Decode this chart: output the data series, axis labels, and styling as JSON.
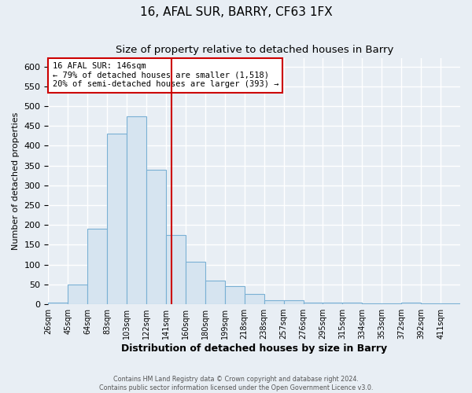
{
  "title": "16, AFAL SUR, BARRY, CF63 1FX",
  "subtitle": "Size of property relative to detached houses in Barry",
  "xlabel": "Distribution of detached houses by size in Barry",
  "ylabel": "Number of detached properties",
  "footer_line1": "Contains HM Land Registry data © Crown copyright and database right 2024.",
  "footer_line2": "Contains public sector information licensed under the Open Government Licence v3.0.",
  "bin_labels": [
    "26sqm",
    "45sqm",
    "64sqm",
    "83sqm",
    "103sqm",
    "122sqm",
    "141sqm",
    "160sqm",
    "180sqm",
    "199sqm",
    "218sqm",
    "238sqm",
    "257sqm",
    "276sqm",
    "295sqm",
    "315sqm",
    "334sqm",
    "353sqm",
    "372sqm",
    "392sqm",
    "411sqm"
  ],
  "bar_heights": [
    5,
    50,
    190,
    430,
    475,
    340,
    175,
    108,
    60,
    45,
    25,
    10,
    10,
    5,
    5,
    5,
    3,
    3,
    5,
    3,
    3
  ],
  "bar_color": "#d6e4f0",
  "bar_edge_color": "#7ab0d4",
  "vline_position": 6.27,
  "vline_color": "#cc0000",
  "annotation_title": "16 AFAL SUR: 146sqm",
  "annotation_line1": "← 79% of detached houses are smaller (1,518)",
  "annotation_line2": "20% of semi-detached houses are larger (393) →",
  "annotation_box_color": "#ffffff",
  "annotation_box_edge": "#cc0000",
  "ylim": [
    0,
    620
  ],
  "yticks": [
    0,
    50,
    100,
    150,
    200,
    250,
    300,
    350,
    400,
    450,
    500,
    550,
    600
  ],
  "background_color": "#e8eef4",
  "grid_color": "#ffffff",
  "title_fontsize": 11,
  "subtitle_fontsize": 9.5,
  "xlabel_fontsize": 9,
  "ylabel_fontsize": 8
}
